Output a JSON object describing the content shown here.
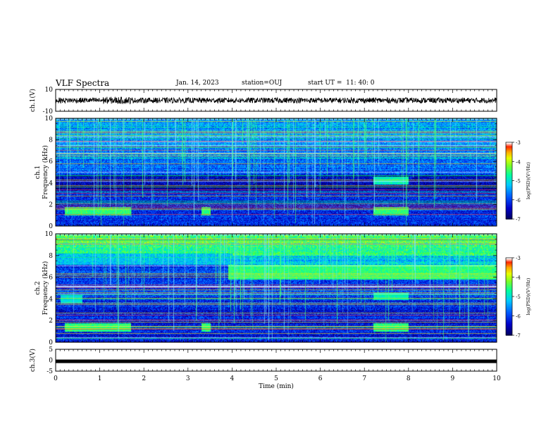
{
  "header": {
    "title": "VLF Spectra",
    "date": "Jan. 14, 2023",
    "station": "station=OUJ",
    "start_ut": "start UT =  11: 40: 0"
  },
  "chart_data": [
    {
      "type": "line",
      "panel": "ch1-waveform",
      "ylabel": "ch.1(V)",
      "ylim": [
        -10,
        10
      ],
      "y_ticks": [
        "10",
        "-10"
      ],
      "x_ticks": [
        "0",
        "1",
        "2",
        "3",
        "4",
        "5",
        "6",
        "7",
        "8",
        "9",
        "10"
      ],
      "xlabel": "",
      "xlim": [
        0,
        10
      ],
      "series": [
        {
          "values_desc": "noise band",
          "amplitude_range": [
            -2.5,
            2.5
          ]
        }
      ],
      "color": "#000000"
    },
    {
      "type": "heatmap",
      "panel": "ch1-spectrogram",
      "ylabel": "ch.1 Frequency (kHz)",
      "ylim": [
        0,
        10
      ],
      "y_ticks": [
        "0",
        "2",
        "4",
        "6",
        "8",
        "10"
      ],
      "xlim": [
        0,
        10
      ],
      "colorbar": {
        "label": "log(PSD)(V²/Hz)",
        "range": [
          -7,
          -3
        ],
        "ticks": [
          "-3",
          "-4",
          "-5",
          "-6",
          "-7"
        ]
      }
    },
    {
      "type": "heatmap",
      "panel": "ch2-spectrogram",
      "ylabel": "ch.2 Frequency (kHz)",
      "ylim": [
        0,
        10
      ],
      "y_ticks": [
        "0",
        "2",
        "4",
        "6",
        "8",
        "10"
      ],
      "xlim": [
        0,
        10
      ],
      "colorbar": {
        "label": "log(PSD)(V²/Hz)",
        "range": [
          -7,
          -3
        ],
        "ticks": [
          "-3",
          "-4",
          "-5",
          "-6",
          "-7"
        ]
      }
    },
    {
      "type": "line",
      "panel": "ch3-waveform",
      "ylabel": "ch.3(V)",
      "ylim": [
        -5,
        5
      ],
      "y_ticks": [
        "5",
        "0",
        "-5"
      ],
      "x_ticks": [
        "0",
        "1",
        "2",
        "3",
        "4",
        "5",
        "6",
        "7",
        "8",
        "9",
        "10"
      ],
      "xlabel": "Time (min)",
      "xlim": [
        0,
        10
      ],
      "series": [
        {
          "values_desc": "near-constant",
          "level": -0.5
        }
      ],
      "color": "#000000"
    }
  ],
  "colors": {
    "cmap": [
      "#000066",
      "#0000cc",
      "#0066ff",
      "#00ccff",
      "#00ff99",
      "#66ff33",
      "#ccff00",
      "#ffcc00",
      "#ff3300",
      "#ffffff"
    ]
  }
}
